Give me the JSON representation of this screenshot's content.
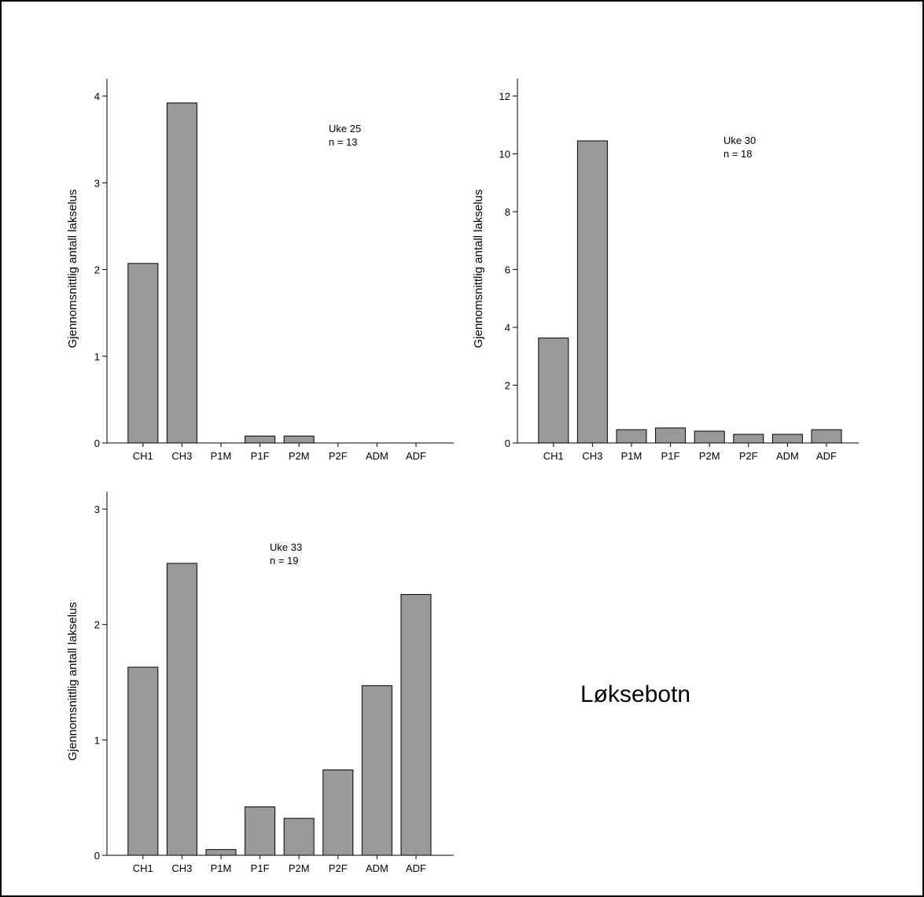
{
  "chart_data": [
    {
      "type": "bar",
      "ylabel": "Gjennomsnittlig antall lakselus",
      "annotation": [
        "Uke 25",
        "n = 13"
      ],
      "categories": [
        "CH1",
        "CH3",
        "P1M",
        "P1F",
        "P2M",
        "P2F",
        "ADM",
        "ADF"
      ],
      "values": [
        2.07,
        3.92,
        0,
        0.08,
        0.08,
        0,
        0,
        0
      ],
      "color": "#999999",
      "ylim": [
        0,
        4.2
      ],
      "yticks": [
        0,
        1,
        2,
        3,
        4
      ]
    },
    {
      "type": "bar",
      "ylabel": "Gjennomsnittlig antall lakselus",
      "annotation": [
        "Uke 30",
        "n = 18"
      ],
      "categories": [
        "CH1",
        "CH3",
        "P1M",
        "P1F",
        "P2M",
        "P2F",
        "ADM",
        "ADF"
      ],
      "values": [
        3.63,
        10.45,
        0.46,
        0.52,
        0.41,
        0.3,
        0.3,
        0.46
      ],
      "color": "#999999",
      "ylim": [
        0,
        12.6
      ],
      "yticks": [
        0,
        2,
        4,
        6,
        8,
        10,
        12
      ]
    },
    {
      "type": "bar",
      "ylabel": "Gjennomsnittlig antall lakselus",
      "annotation": [
        "Uke 33",
        "n = 19"
      ],
      "categories": [
        "CH1",
        "CH3",
        "P1M",
        "P1F",
        "P2M",
        "P2F",
        "ADM",
        "ADF"
      ],
      "values": [
        1.63,
        2.53,
        0.05,
        0.42,
        0.32,
        0.74,
        1.47,
        2.26
      ],
      "color": "#999999",
      "ylim": [
        0,
        3.15
      ],
      "yticks": [
        0,
        1,
        2,
        3
      ]
    }
  ],
  "label": "Løksebotn"
}
